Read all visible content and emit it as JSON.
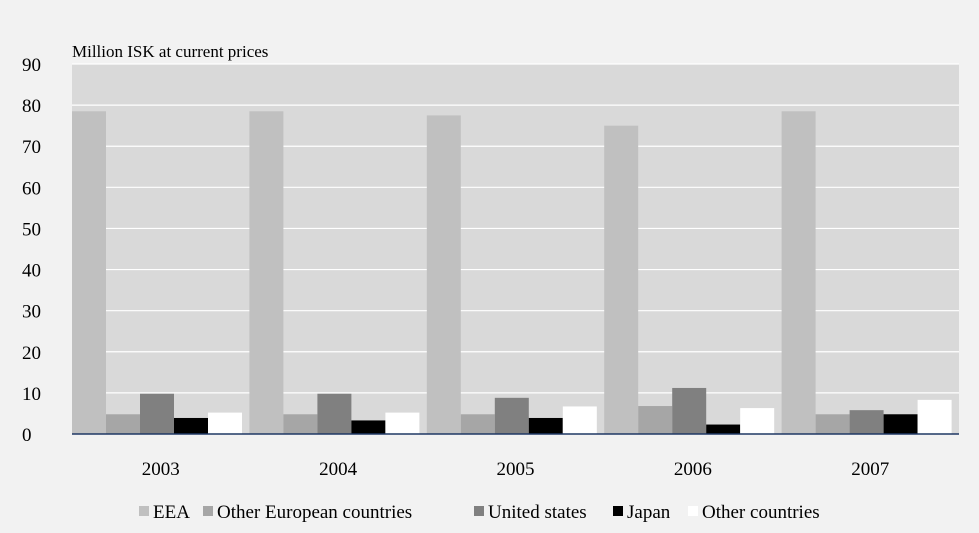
{
  "chart_data": {
    "type": "bar",
    "title": "",
    "unit_label": "Million ISK at current prices",
    "xlabel": "",
    "ylabel": "",
    "ylim": [
      0,
      90
    ],
    "yticks": [
      0,
      10,
      20,
      30,
      40,
      50,
      60,
      70,
      80,
      90
    ],
    "grid": true,
    "legend_position": "bottom",
    "categories": [
      "2003",
      "2004",
      "2005",
      "2006",
      "2007"
    ],
    "series": [
      {
        "name": "EEA",
        "color": "#c0c0c0",
        "values": [
          78.5,
          78.5,
          77.5,
          75,
          78.5
        ]
      },
      {
        "name": "Other European countries",
        "color": "#a6a6a6",
        "values": [
          4.8,
          4.8,
          4.8,
          6.8,
          4.8
        ]
      },
      {
        "name": "United states",
        "color": "#808080",
        "values": [
          9.8,
          9.8,
          8.8,
          11.2,
          5.8
        ]
      },
      {
        "name": "Japan",
        "color": "#000000",
        "values": [
          3.9,
          3.3,
          3.9,
          2.3,
          4.8
        ]
      },
      {
        "name": "Other countries",
        "color": "#ffffff",
        "values": [
          5.2,
          5.2,
          6.7,
          6.3,
          8.3
        ]
      }
    ]
  }
}
